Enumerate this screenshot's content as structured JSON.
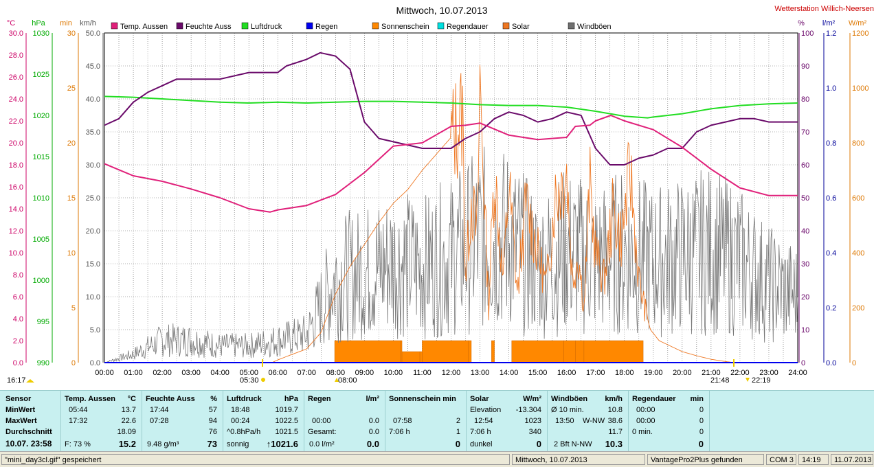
{
  "chart_data": {
    "type": "line",
    "title": "Mittwoch, 10.07.2013",
    "station": "Wetterstation Willich-Neersen",
    "x_ticks": [
      "00:00",
      "01:00",
      "02:00",
      "03:00",
      "04:00",
      "05:00",
      "06:00",
      "07:00",
      "08:00",
      "09:00",
      "10:00",
      "11:00",
      "12:00",
      "13:00",
      "14:00",
      "15:00",
      "16:00",
      "17:00",
      "18:00",
      "19:00",
      "20:00",
      "21:00",
      "22:00",
      "23:00",
      "24:00"
    ],
    "axes": {
      "temp": {
        "unit": "°C",
        "color": "#cc0066",
        "ticks": [
          "0.0",
          "2.0",
          "4.0",
          "6.0",
          "8.0",
          "10.0",
          "12.0",
          "14.0",
          "16.0",
          "18.0",
          "20.0",
          "22.0",
          "24.0",
          "26.0",
          "28.0",
          "30.0"
        ],
        "range": [
          0,
          30
        ]
      },
      "pressure": {
        "unit": "hPa",
        "color": "#00aa00",
        "ticks": [
          "990",
          "995",
          "1000",
          "1005",
          "1010",
          "1015",
          "1020",
          "1025",
          "1030"
        ],
        "range": [
          990,
          1030
        ]
      },
      "minutes": {
        "unit": "min",
        "color": "#dd7700",
        "ticks": [
          "0",
          "5",
          "10",
          "15",
          "20",
          "25",
          "30"
        ],
        "range": [
          0,
          30
        ]
      },
      "wind": {
        "unit": "km/h",
        "color": "#555555",
        "ticks": [
          "0.0",
          "5.0",
          "10.0",
          "15.0",
          "20.0",
          "25.0",
          "30.0",
          "35.0",
          "40.0",
          "45.0",
          "50.0"
        ],
        "range": [
          0,
          50
        ]
      },
      "humidity": {
        "unit": "%",
        "color": "#660066",
        "ticks": [
          "0",
          "10",
          "20",
          "30",
          "40",
          "50",
          "60",
          "70",
          "80",
          "90",
          "100"
        ],
        "range": [
          0,
          100
        ]
      },
      "rain": {
        "unit": "l/m²",
        "color": "#000099",
        "ticks": [
          "0.0",
          "0.2",
          "0.4",
          "0.6",
          "0.8",
          "1.0",
          "1.2"
        ],
        "range": [
          0,
          1.2
        ]
      },
      "solar": {
        "unit": "W/m²",
        "color": "#dd7700",
        "ticks": [
          "0",
          "200",
          "400",
          "600",
          "800",
          "1000",
          "1200"
        ],
        "range": [
          0,
          1200
        ]
      }
    },
    "legend": [
      {
        "name": "Temp. Aussen",
        "color": "#e0207a"
      },
      {
        "name": "Feuchte Auss",
        "color": "#6a0a6a"
      },
      {
        "name": "Luftdruck",
        "color": "#22dd22"
      },
      {
        "name": "Regen",
        "color": "#0000ee"
      },
      {
        "name": "Sonnenschein",
        "color": "#ff8800"
      },
      {
        "name": "Regendauer",
        "color": "#00e0e0"
      },
      {
        "name": "Solar",
        "color": "#ee7722"
      },
      {
        "name": "Windböen",
        "color": "#707070"
      }
    ],
    "series": [
      {
        "name": "Temp. Aussen",
        "axis": "temp",
        "x": [
          0,
          1,
          2,
          3,
          4,
          5,
          5.73,
          6,
          7,
          8,
          9,
          10,
          11,
          12,
          12.5,
          13,
          14,
          15,
          16,
          16.3,
          16.8,
          17,
          17.53,
          18,
          19,
          20,
          21,
          22,
          23,
          24
        ],
        "values": [
          18.1,
          17.0,
          16.5,
          15.8,
          15.0,
          14.0,
          13.7,
          13.9,
          14.3,
          15.3,
          17.3,
          19.7,
          20.0,
          21.5,
          21.6,
          21.8,
          20.7,
          20.3,
          20.5,
          21.5,
          21.6,
          22.0,
          22.5,
          22.0,
          21.2,
          19.6,
          17.6,
          15.9,
          15.2,
          15.2
        ]
      },
      {
        "name": "Feuchte Auss",
        "axis": "humidity",
        "x": [
          0,
          0.5,
          1,
          1.5,
          2,
          2.5,
          3,
          4,
          5,
          6,
          6.3,
          7,
          7.47,
          8,
          8.5,
          9,
          9.5,
          10,
          11,
          11.5,
          12,
          12.5,
          13,
          13.5,
          14,
          14.5,
          15,
          15.5,
          16,
          16.5,
          17,
          17.5,
          18,
          18.5,
          19,
          19.5,
          20,
          20.5,
          21,
          21.5,
          22,
          22.5,
          23,
          23.5,
          24
        ],
        "values": [
          72,
          74,
          79,
          82,
          84,
          86,
          86,
          86,
          88,
          88,
          90,
          92,
          94,
          93,
          89,
          73,
          68,
          67,
          65,
          65,
          65,
          68,
          70,
          74,
          76,
          75,
          73,
          74,
          76,
          75,
          65,
          60,
          60,
          62,
          63,
          65,
          65,
          70,
          72,
          73,
          74,
          74,
          73,
          73,
          73
        ]
      },
      {
        "name": "Luftdruck",
        "axis": "pressure",
        "x": [
          0,
          1,
          2,
          3,
          4,
          5,
          6,
          7,
          8,
          9,
          10,
          11,
          12,
          13,
          14,
          15,
          16,
          17,
          18,
          18.8,
          19,
          20,
          21,
          22,
          23,
          24
        ],
        "values": [
          1022.3,
          1022.2,
          1022.0,
          1021.8,
          1021.6,
          1021.5,
          1021.6,
          1021.5,
          1021.6,
          1021.7,
          1021.7,
          1021.6,
          1021.5,
          1021.3,
          1021.2,
          1021.2,
          1021.0,
          1020.5,
          1019.9,
          1019.7,
          1019.8,
          1020.2,
          1020.8,
          1021.2,
          1021.4,
          1021.5
        ]
      },
      {
        "name": "Solar",
        "axis": "solar",
        "x": [
          5.8,
          6,
          7,
          7.5,
          8,
          8.5,
          9,
          9.5,
          10,
          10.5,
          11,
          11.5,
          12,
          12.4,
          12.5,
          12.7,
          12.9,
          13,
          13.3,
          13.5,
          13.8,
          14,
          14.3,
          14.6,
          15,
          15.3,
          15.6,
          16,
          16.2,
          16.4,
          16.6,
          16.8,
          17,
          17.3,
          17.6,
          17.9,
          18.2,
          18.5,
          18.7,
          18.9,
          19.2,
          19.6,
          20,
          20.5,
          21,
          21.5,
          21.8
        ],
        "values": [
          0,
          10,
          50,
          110,
          250,
          350,
          430,
          510,
          580,
          630,
          700,
          760,
          820,
          900,
          300,
          600,
          450,
          1023,
          200,
          700,
          300,
          650,
          250,
          580,
          400,
          280,
          600,
          700,
          300,
          400,
          200,
          650,
          400,
          300,
          550,
          450,
          700,
          300,
          200,
          120,
          80,
          60,
          40,
          25,
          12,
          4,
          0
        ]
      },
      {
        "name": "Windböen",
        "axis": "wind",
        "x": [
          0,
          1,
          2,
          3,
          4,
          5,
          6,
          7,
          7.5,
          8,
          9,
          10,
          11,
          12,
          13,
          14,
          15,
          16,
          17,
          18,
          19,
          20,
          21,
          22,
          23,
          24
        ],
        "values": [
          0,
          1.5,
          4,
          4,
          3,
          3,
          4,
          5,
          10,
          15,
          16,
          18,
          17,
          19,
          22,
          22,
          17,
          20,
          18,
          20,
          18,
          19,
          20,
          18,
          14,
          12
        ]
      },
      {
        "name": "Sonnenschein",
        "axis": "minutes",
        "x": [
          7.97,
          10.25,
          10.3,
          10.92,
          11,
          12.6,
          12.7,
          13.4,
          13.5,
          14.1,
          15.9,
          16.3,
          16.6,
          18.65
        ],
        "values": [
          2,
          2,
          1,
          1,
          2,
          2,
          0,
          2,
          0,
          2,
          2,
          2,
          2,
          2
        ]
      },
      {
        "name": "Regen",
        "axis": "rain",
        "x": [
          0,
          24
        ],
        "values": [
          0,
          0
        ]
      },
      {
        "name": "Regendauer",
        "axis": "minutes",
        "x": [
          0,
          24
        ],
        "values": [
          0,
          0
        ]
      }
    ],
    "annotations": [
      {
        "text": "16:17"
      },
      {
        "text": "05:30"
      },
      {
        "text": "08:00"
      },
      {
        "text": "21:48"
      },
      {
        "text": "22:19"
      }
    ],
    "grid": true
  },
  "stats": {
    "sensor": {
      "title": "Sensor",
      "rows": [
        "MinWert",
        "MaxWert",
        "Durchschnitt",
        "10.07. 23:58"
      ]
    },
    "temp": {
      "title": "Temp. Aussen",
      "unit": "°C",
      "min_t": "05:44",
      "min_v": "13.7",
      "max_t": "17:32",
      "max_v": "22.6",
      "avg_v": "18.09",
      "now_l": "F: 73 %",
      "now_v": "15.2"
    },
    "hum": {
      "title": "Feuchte Auss",
      "unit": "%",
      "min_t": "17:44",
      "min_v": "57",
      "max_t": "07:28",
      "max_v": "94",
      "avg_v": "76",
      "now_l": "9.48 g/m³",
      "now_v": "73"
    },
    "press": {
      "title": "Luftdruck",
      "unit": "hPa",
      "min_t": "18:48",
      "min_v": "1019.7",
      "max_t": "00:24",
      "max_v": "1022.5",
      "avg_l": "^0.8hPa/h",
      "avg_v": "1021.5",
      "now_l": "sonnig",
      "now_v": "↑1021.6"
    },
    "rain": {
      "title": "Regen",
      "unit": "l/m²",
      "max_t": "00:00",
      "max_v": "0.0",
      "avg_l": "Gesamt:",
      "avg_v": "0.0",
      "now_l": "0.0 l/m²",
      "now_v": "0.0"
    },
    "sun": {
      "title": "Sonnenschein min",
      "max_t": "07:58",
      "max_v": "2",
      "avg_l": "7:06 h",
      "avg_v": "1",
      "now_v": "0"
    },
    "solar": {
      "title": "Solar",
      "unit": "W/m²",
      "min_l": "Elevation",
      "min_v": "-13.304",
      "max_t": "12:54",
      "max_v": "1023",
      "avg_l": "7:06 h",
      "avg_v": "340",
      "now_l": "dunkel",
      "now_v": "0"
    },
    "wind": {
      "title": "Windböen",
      "unit": "km/h",
      "min_l": "Ø 10 min.",
      "min_v": "10.8",
      "max_t": "13:50",
      "max_m": "W-NW",
      "max_v": "38.6",
      "avg_v": "11.7",
      "now_l": "2 Bft N-NW",
      "now_v": "10.3"
    },
    "rdur": {
      "title": "Regendauer",
      "unit": "min",
      "min_t": "00:00",
      "min_v": "0",
      "max_t": "00:00",
      "max_v": "0",
      "avg_l": "0 min.",
      "avg_v": "0",
      "now_v": "0"
    }
  },
  "status": {
    "file": "\"mini_day3cl.gif\"  gespeichert",
    "date": "Mittwoch, 10.07.2013",
    "device": "VantagePro2Plus gefunden",
    "port": "COM 3",
    "time": "14:19",
    "today": "11.07.2013"
  }
}
